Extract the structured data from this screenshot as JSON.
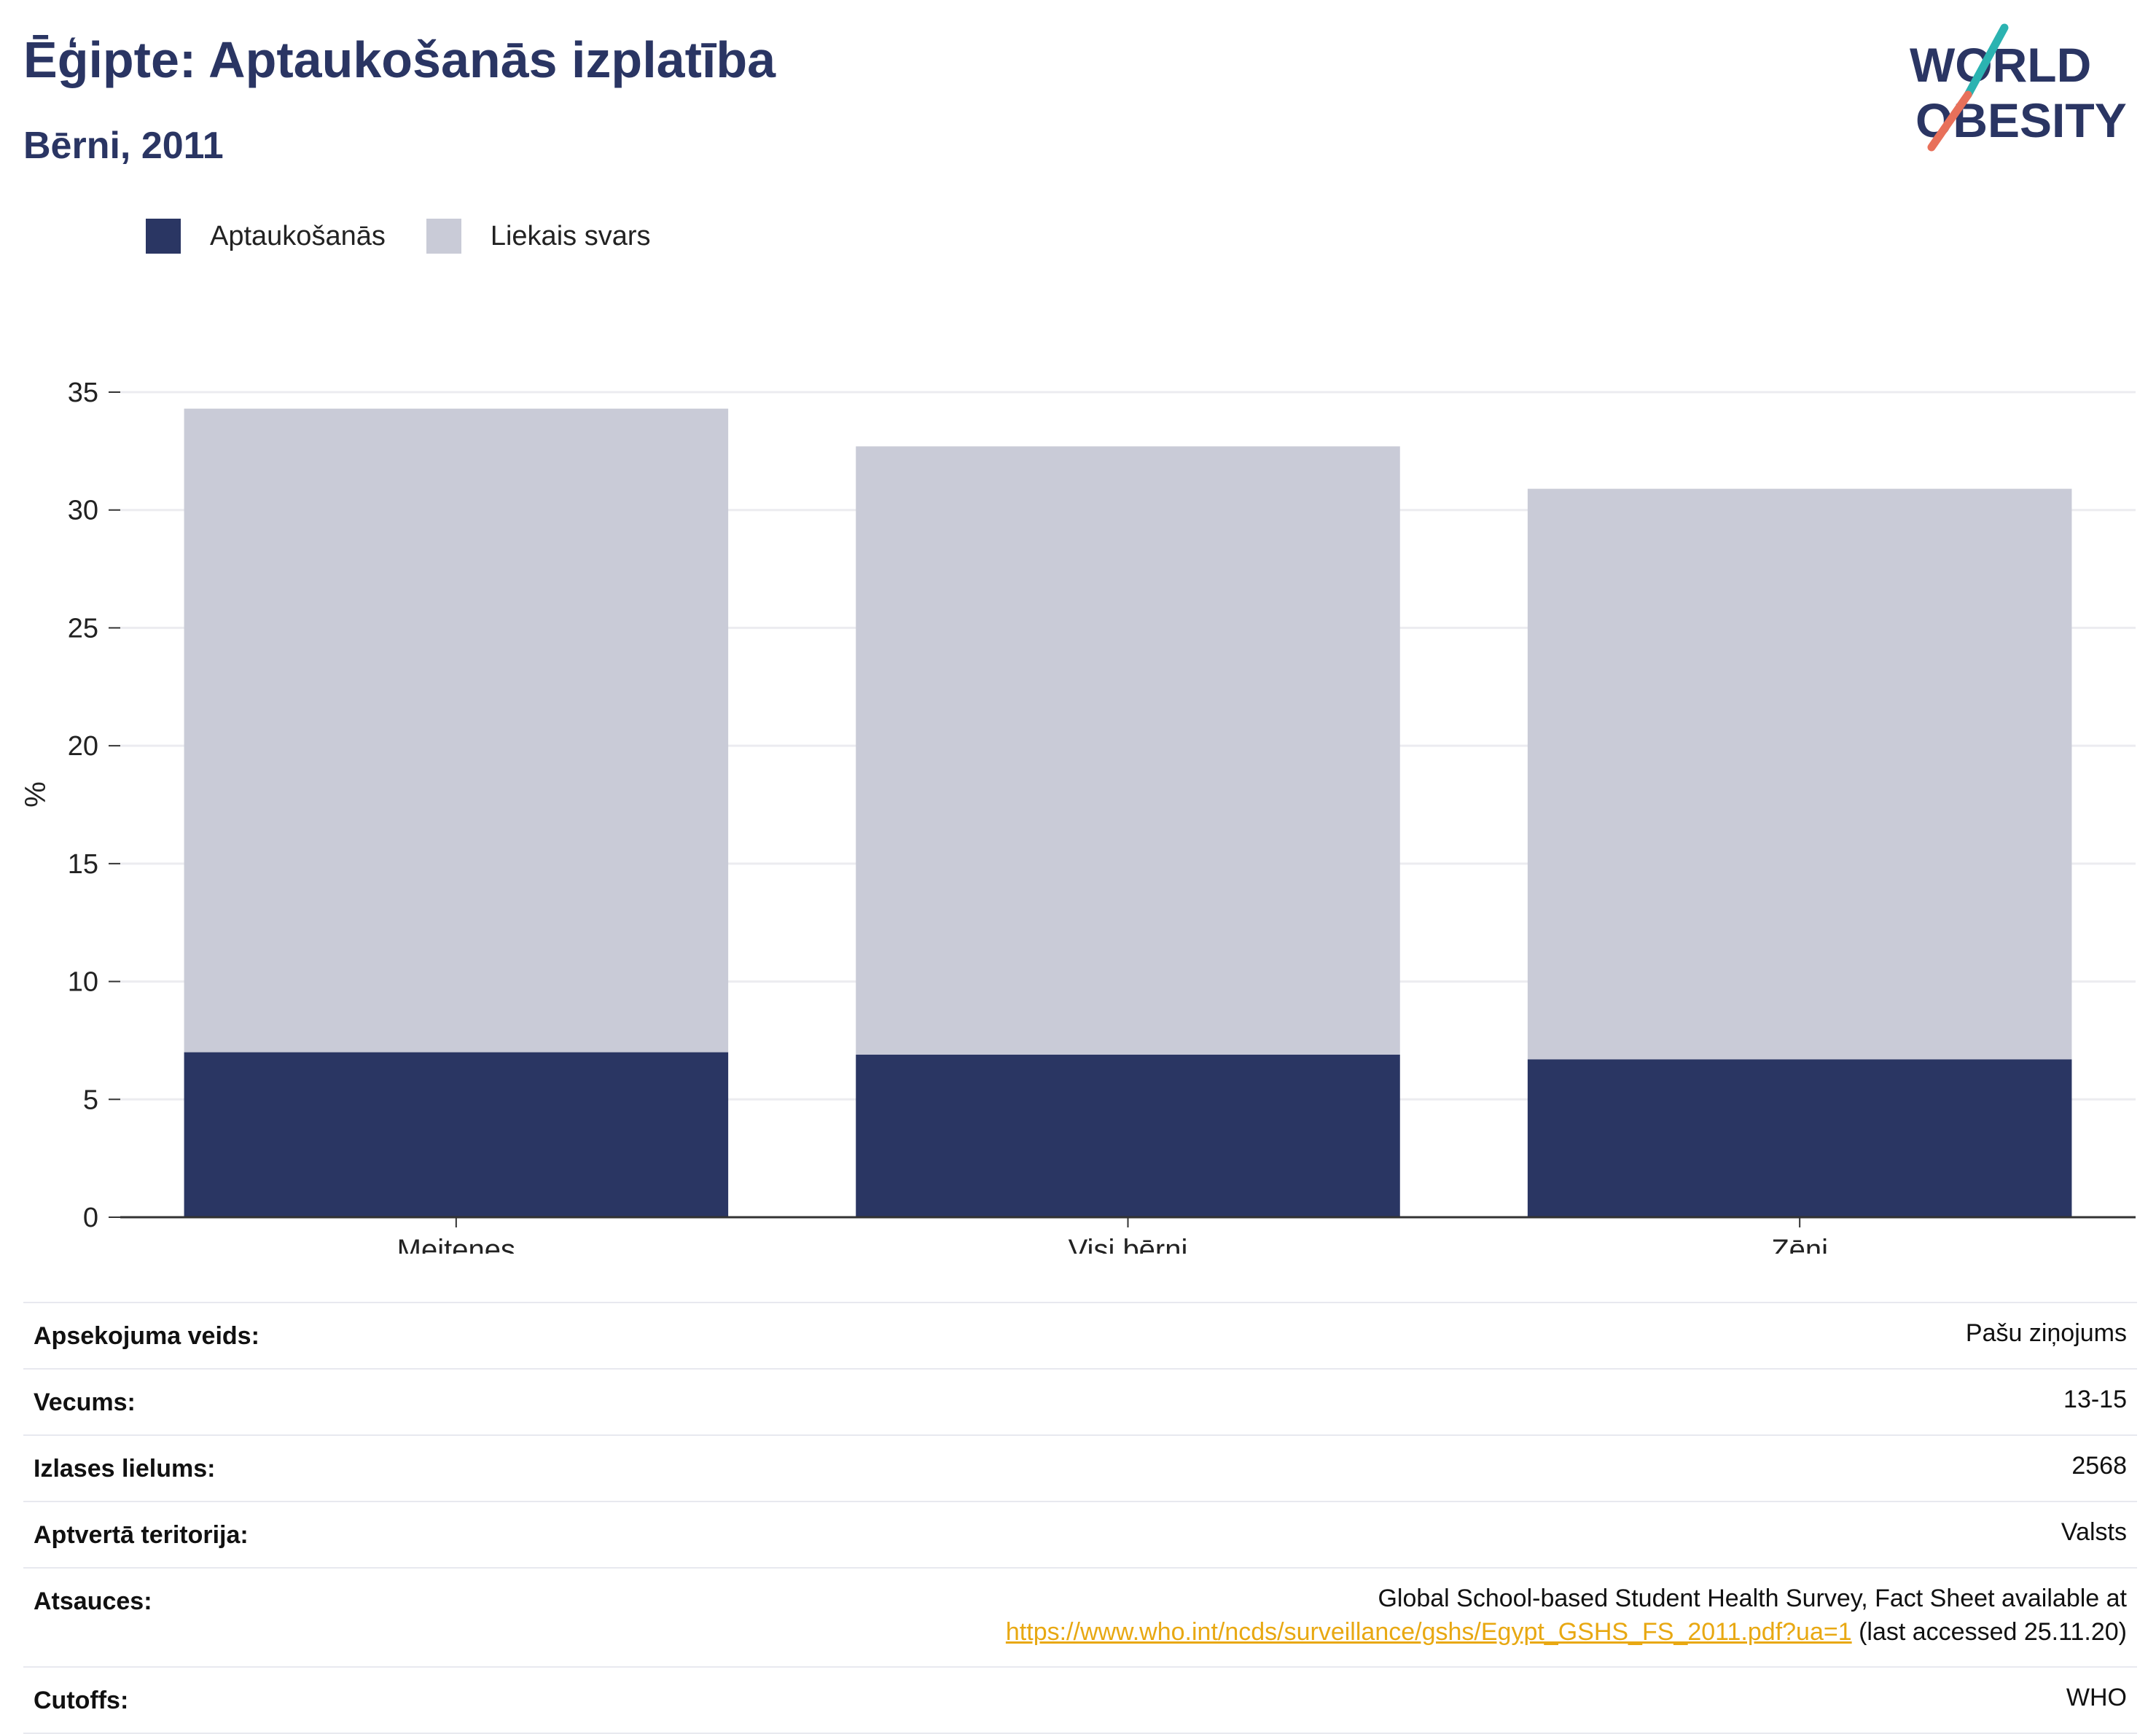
{
  "header": {
    "title": "Ēģipte: Aptaukošanās izplatība",
    "subtitle": "Bērni, 2011"
  },
  "logo": {
    "line1": "WORLD",
    "line2": "OBESITY",
    "colors": {
      "text": "#2a3563",
      "slash_top": "#2bb3b1",
      "slash_bottom": "#e8705a"
    }
  },
  "chart_data": {
    "type": "bar",
    "stacked": true,
    "categories": [
      "Meitenes",
      "Visi bērni",
      "Zēni"
    ],
    "series": [
      {
        "name": "Aptaukošanās",
        "color": "#2a3663",
        "values": [
          7.0,
          6.9,
          6.7
        ]
      },
      {
        "name": "Liekais svars",
        "color": "#c9cbd7",
        "values": [
          27.3,
          25.8,
          24.2
        ]
      }
    ],
    "ylabel": "%",
    "ylim": [
      0,
      35
    ],
    "yticks": [
      "0",
      "5",
      "10",
      "15",
      "20",
      "25",
      "30",
      "35"
    ],
    "grid": true,
    "legend": "top-left"
  },
  "meta": {
    "rows": [
      {
        "label": "Apsekojuma veids:",
        "value": "Pašu ziņojums"
      },
      {
        "label": "Vecums:",
        "value": "13-15"
      },
      {
        "label": "Izlases lielums:",
        "value": "2568"
      },
      {
        "label": "Aptvertā teritorija:",
        "value": "Valsts"
      }
    ],
    "references": {
      "label": "Atsauces:",
      "line1": "Global School-based Student Health Survey, Fact Sheet available at",
      "link": "https://www.who.int/ncds/surveillance/gshs/Egypt_GSHS_FS_2011.pdf?ua=1",
      "suffix": " (last accessed 25.11.20)"
    },
    "cutoffs": {
      "label": "Cutoffs:",
      "value": "WHO"
    }
  }
}
